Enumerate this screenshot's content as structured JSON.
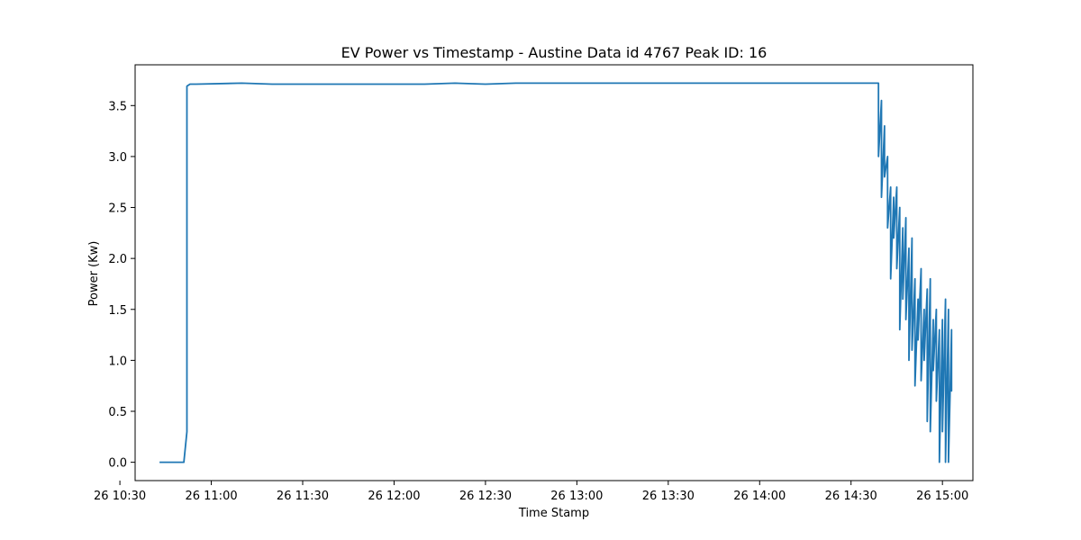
{
  "chart_data": {
    "type": "line",
    "title": "EV Power vs Timestamp - Austine Data id 4767 Peak ID: 16",
    "xlabel": "Time Stamp",
    "ylabel": "Power (Kw)",
    "x_axis": "time",
    "xlim": [
      "10:35",
      "15:10"
    ],
    "ylim": [
      -0.18,
      3.9
    ],
    "x_ticks": [
      {
        "time": "10:30",
        "label": "26 10:30"
      },
      {
        "time": "11:00",
        "label": "26 11:00"
      },
      {
        "time": "11:30",
        "label": "26 11:30"
      },
      {
        "time": "12:00",
        "label": "26 12:00"
      },
      {
        "time": "12:30",
        "label": "26 12:30"
      },
      {
        "time": "13:00",
        "label": "26 13:00"
      },
      {
        "time": "13:30",
        "label": "26 13:30"
      },
      {
        "time": "14:00",
        "label": "26 14:00"
      },
      {
        "time": "14:30",
        "label": "26 14:30"
      },
      {
        "time": "15:00",
        "label": "26 15:00"
      }
    ],
    "y_ticks": [
      {
        "value": 0.0,
        "label": "0.0"
      },
      {
        "value": 0.5,
        "label": "0.5"
      },
      {
        "value": 1.0,
        "label": "1.0"
      },
      {
        "value": 1.5,
        "label": "1.5"
      },
      {
        "value": 2.0,
        "label": "2.0"
      },
      {
        "value": 2.5,
        "label": "2.5"
      },
      {
        "value": 3.0,
        "label": "3.0"
      },
      {
        "value": 3.5,
        "label": "3.5"
      }
    ],
    "grid": false,
    "color": "#1f77b4",
    "series": [
      {
        "x": [
          "10:43",
          "10:45",
          "10:48",
          "10:51",
          "10:52",
          "10:52",
          "10:53",
          "10:55",
          "11:10",
          "11:20",
          "11:30",
          "11:50",
          "12:10",
          "12:20",
          "12:30",
          "12:40",
          "13:00",
          "13:30",
          "14:00",
          "14:30",
          "14:38",
          "14:39",
          "14:39",
          "14:40",
          "14:40",
          "14:41",
          "14:41",
          "14:42",
          "14:42",
          "14:43",
          "14:43",
          "14:44",
          "14:44",
          "14:45",
          "14:45",
          "14:46",
          "14:46",
          "14:47",
          "14:47",
          "14:48",
          "14:48",
          "14:49",
          "14:49",
          "14:50",
          "14:50",
          "14:51",
          "14:51",
          "14:52",
          "14:52",
          "14:53",
          "14:53",
          "14:54",
          "14:54",
          "14:55",
          "14:55",
          "14:56",
          "14:56",
          "14:57",
          "14:57",
          "14:58",
          "14:58",
          "14:59",
          "14:59",
          "15:00",
          "15:00",
          "15:01",
          "15:01",
          "15:02",
          "15:02",
          "15:03",
          "15:03",
          "15:03"
        ],
        "y": [
          0.0,
          0.0,
          0.0,
          0.0,
          0.3,
          3.69,
          3.71,
          3.71,
          3.72,
          3.71,
          3.71,
          3.71,
          3.71,
          3.72,
          3.71,
          3.72,
          3.72,
          3.72,
          3.72,
          3.72,
          3.72,
          3.72,
          3.0,
          3.55,
          2.6,
          3.3,
          2.8,
          3.0,
          2.3,
          2.7,
          1.8,
          2.6,
          2.2,
          2.7,
          1.9,
          2.5,
          1.3,
          2.3,
          1.6,
          2.4,
          1.4,
          2.1,
          1.0,
          2.2,
          1.1,
          1.8,
          0.75,
          1.6,
          1.2,
          1.9,
          0.8,
          1.5,
          1.0,
          1.7,
          0.4,
          1.8,
          0.3,
          1.4,
          0.9,
          1.5,
          0.6,
          1.3,
          0.0,
          1.4,
          0.3,
          1.6,
          0.0,
          1.5,
          0.0,
          1.3,
          0.7,
          1.3
        ]
      }
    ]
  }
}
